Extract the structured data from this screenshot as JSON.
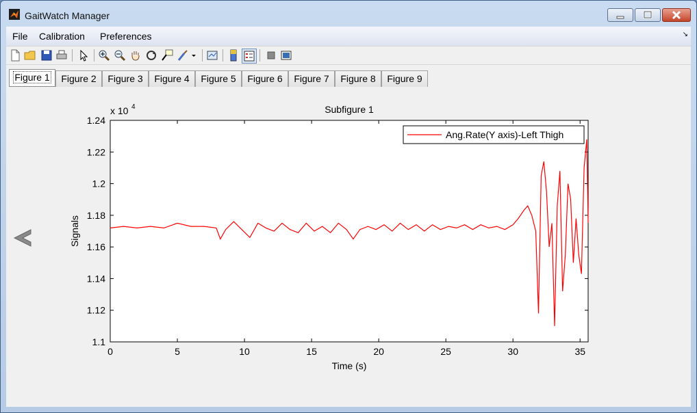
{
  "window": {
    "title": "GaitWatch Manager"
  },
  "menu": {
    "items": [
      "File",
      "Calibration",
      "Preferences"
    ]
  },
  "tabs": [
    "Figure 1",
    "Figure 2",
    "Figure 3",
    "Figure 4",
    "Figure 5",
    "Figure 6",
    "Figure 7",
    "Figure 8",
    "Figure 9"
  ],
  "active_tab": 0,
  "colors": {
    "series": "#ff0000",
    "accent": "#3f5f86"
  },
  "chart_data": {
    "type": "line",
    "title": "Subfigure 1",
    "xlabel": "Time (s)",
    "ylabel": "Signals",
    "y_multiplier_label": "x 10",
    "y_multiplier_exp": "4",
    "xlim": [
      0,
      35.6
    ],
    "ylim": [
      1.1,
      1.24
    ],
    "xticks": [
      0,
      5,
      10,
      15,
      20,
      25,
      30,
      35
    ],
    "yticks": [
      1.1,
      1.12,
      1.14,
      1.16,
      1.18,
      1.2,
      1.22,
      1.24
    ],
    "legend": {
      "position": "top-right"
    },
    "series": [
      {
        "name": "Ang.Rate(Y axis)-Left Thigh",
        "x": [
          0,
          1,
          2,
          3,
          4,
          5,
          6,
          7,
          7.9,
          8.2,
          8.6,
          9.2,
          9.8,
          10.4,
          11,
          11.6,
          12.2,
          12.8,
          13.4,
          14,
          14.6,
          15.2,
          15.8,
          16.4,
          17,
          17.6,
          18.1,
          18.6,
          19.2,
          19.8,
          20.4,
          21,
          21.6,
          22.2,
          22.8,
          23.4,
          24,
          24.6,
          25.2,
          25.8,
          26.4,
          27,
          27.6,
          28.2,
          28.8,
          29.4,
          30,
          30.4,
          30.8,
          31.1,
          31.4,
          31.7,
          31.9,
          32.1,
          32.3,
          32.5,
          32.7,
          32.9,
          33.1,
          33.3,
          33.5,
          33.7,
          33.9,
          34.1,
          34.3,
          34.5,
          34.7,
          34.9,
          35.1,
          35.3,
          35.5,
          35.6
        ],
        "y": [
          1.172,
          1.173,
          1.172,
          1.173,
          1.172,
          1.175,
          1.173,
          1.173,
          1.172,
          1.165,
          1.171,
          1.176,
          1.171,
          1.166,
          1.175,
          1.172,
          1.17,
          1.175,
          1.171,
          1.169,
          1.175,
          1.17,
          1.173,
          1.169,
          1.175,
          1.171,
          1.165,
          1.171,
          1.173,
          1.171,
          1.174,
          1.17,
          1.175,
          1.171,
          1.174,
          1.17,
          1.174,
          1.171,
          1.173,
          1.172,
          1.174,
          1.171,
          1.174,
          1.172,
          1.173,
          1.171,
          1.174,
          1.178,
          1.183,
          1.186,
          1.18,
          1.17,
          1.118,
          1.205,
          1.214,
          1.195,
          1.16,
          1.175,
          1.11,
          1.186,
          1.208,
          1.132,
          1.155,
          1.2,
          1.19,
          1.15,
          1.178,
          1.155,
          1.143,
          1.21,
          1.228,
          1.175
        ]
      }
    ]
  }
}
